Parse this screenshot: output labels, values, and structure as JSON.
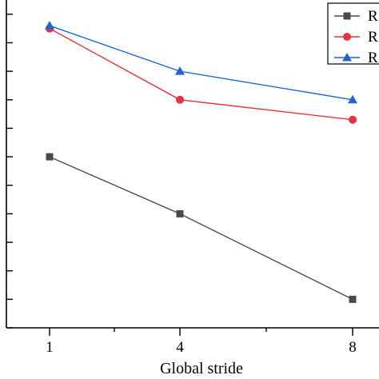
{
  "chart_data": {
    "type": "line",
    "xlabel": "Global stride",
    "ylabel": "",
    "categories": [
      "1",
      "4",
      "8"
    ],
    "ylim": [
      0,
      11.5
    ],
    "grid": false,
    "legend": "top-right",
    "series": [
      {
        "name": "R",
        "color": "#4a4a4a",
        "marker": "square",
        "values": [
          6.0,
          4.0,
          1.0
        ]
      },
      {
        "name": "R",
        "color": "#e8323c",
        "marker": "circle",
        "values": [
          10.5,
          8.0,
          7.3
        ]
      },
      {
        "name": "R",
        "color": "#1f63d6",
        "marker": "triangle",
        "values": [
          10.6,
          9.0,
          8.0
        ]
      }
    ]
  }
}
